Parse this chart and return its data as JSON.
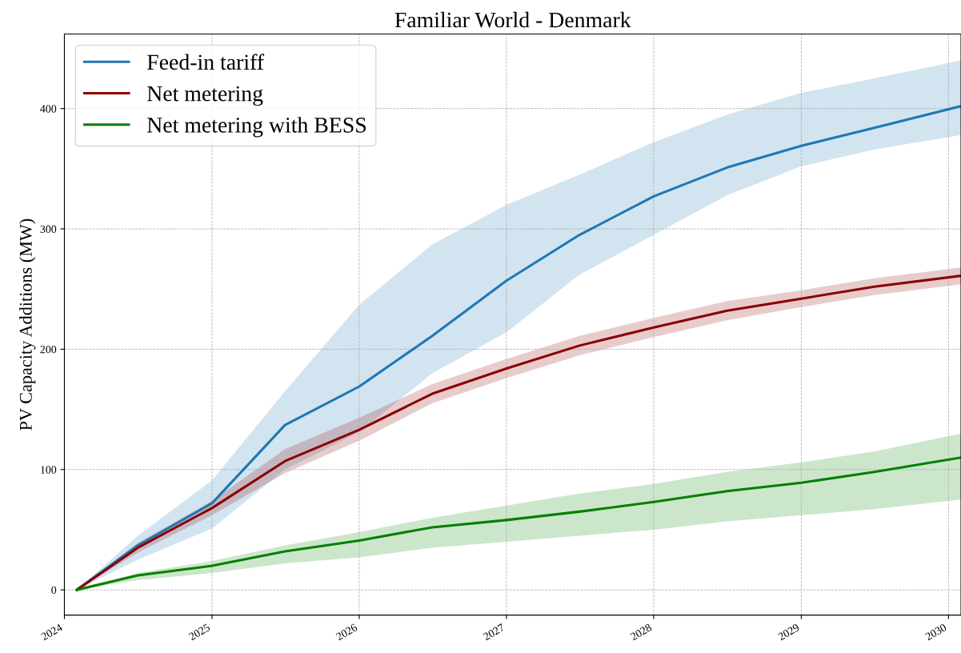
{
  "chart_data": {
    "type": "line",
    "title": "Familiar World - Denmark",
    "ylabel": "PV Capacity Additions (MW)",
    "x": [
      "2024-02",
      "2024-07",
      "2025-01",
      "2025-07",
      "2026-01",
      "2026-07",
      "2027-01",
      "2027-07",
      "2028-01",
      "2028-07",
      "2029-01",
      "2029-07",
      "2030-02"
    ],
    "series": [
      {
        "name": "Feed-in tariff",
        "color": "#1f77b4",
        "values": [
          0,
          37,
          72,
          137,
          169,
          211,
          257,
          295,
          327,
          351,
          369,
          384,
          402
        ],
        "lower": [
          0,
          25,
          51,
          100,
          131,
          180,
          214,
          262,
          295,
          328,
          352,
          366,
          378
        ],
        "upper": [
          0,
          45,
          91,
          165,
          237,
          287,
          320,
          345,
          372,
          395,
          413,
          425,
          440
        ]
      },
      {
        "name": "Net metering",
        "color": "#8b0000",
        "values": [
          0,
          35,
          68,
          107,
          133,
          163,
          184,
          203,
          218,
          232,
          242,
          252,
          261
        ],
        "lower": [
          0,
          31,
          62,
          97,
          124,
          155,
          176,
          195,
          210,
          224,
          235,
          245,
          254
        ],
        "upper": [
          0,
          39,
          74,
          117,
          143,
          171,
          192,
          211,
          226,
          240,
          249,
          259,
          268
        ]
      },
      {
        "name": "Net metering with BESS",
        "color": "#008000",
        "values": [
          0,
          12,
          20,
          32,
          41,
          52,
          58,
          65,
          73,
          82,
          89,
          98,
          110
        ],
        "lower": [
          0,
          8,
          14,
          22,
          27,
          35,
          40,
          45,
          50,
          57,
          62,
          67,
          75
        ],
        "upper": [
          0,
          14,
          24,
          37,
          48,
          60,
          70,
          80,
          88,
          98,
          106,
          115,
          130
        ]
      }
    ],
    "xlim": [
      "2024",
      "2030-02"
    ],
    "xticks": [
      "2024",
      "2025",
      "2026",
      "2027",
      "2028",
      "2029",
      "2030"
    ],
    "ylim": [
      -21,
      462
    ],
    "yticks": [
      0,
      100,
      200,
      300,
      400
    ],
    "grid": true,
    "legend": "top left",
    "line_style": "solid",
    "marker": "none"
  }
}
